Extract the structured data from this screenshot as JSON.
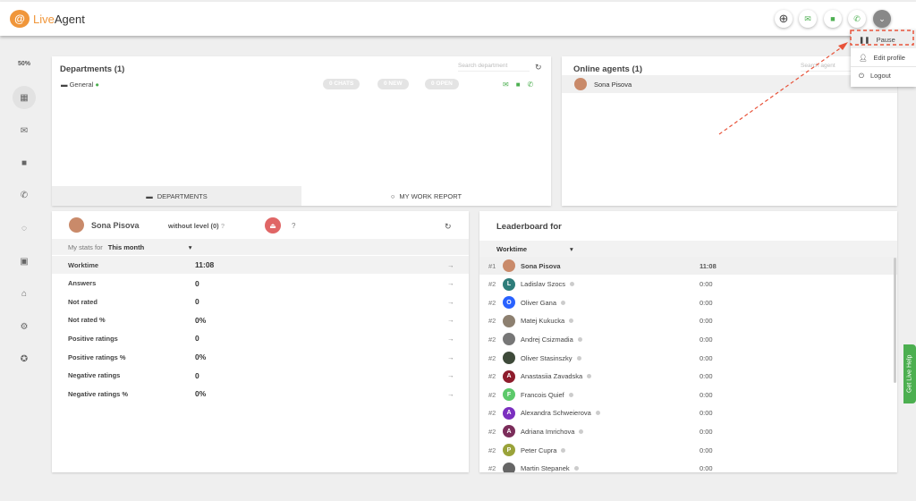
{
  "app": {
    "logo": "LiveAgent",
    "logo_live": "Live",
    "logo_agent": "Agent"
  },
  "header": {
    "buttons": [
      "add-icon",
      "email-icon",
      "chat-icon",
      "phone-icon",
      "chevron-down-icon"
    ]
  },
  "sidebar": {
    "zoom": "50%",
    "items": [
      "dashboard-icon",
      "email-icon",
      "chat-icon",
      "phone-icon",
      "contacts-icon",
      "customers-icon",
      "reports-icon",
      "settings-icon",
      "plugins-icon"
    ]
  },
  "user_menu": {
    "items": [
      {
        "label": "Pause",
        "icon": "pause-icon"
      },
      {
        "label": "Edit profile",
        "icon": "person-icon"
      },
      {
        "label": "Logout",
        "icon": "power-icon"
      }
    ]
  },
  "departments": {
    "title": "Departments (1)",
    "search_placeholder": "Search department",
    "items": [
      {
        "name": "General",
        "chats": "0 CHATS",
        "new": "0 NEW",
        "open": "0 OPEN"
      }
    ],
    "tabs": [
      "DEPARTMENTS",
      "MY WORK REPORT"
    ]
  },
  "online_agents": {
    "title": "Online agents (1)",
    "search_placeholder": "Search agent",
    "agents": [
      "Sona Pisova"
    ]
  },
  "stats": {
    "name": "Sona Pisova",
    "level": "without level (0)",
    "help": "?",
    "help2": "?",
    "period_label": "My stats for",
    "period": "This month",
    "rows": [
      {
        "label": "Worktime",
        "value": "11:08"
      },
      {
        "label": "Answers",
        "value": "0"
      },
      {
        "label": "Not rated",
        "value": "0"
      },
      {
        "label": "Not rated %",
        "value": "0%"
      },
      {
        "label": "Positive ratings",
        "value": "0"
      },
      {
        "label": "Positive ratings %",
        "value": "0%"
      },
      {
        "label": "Negative ratings",
        "value": "0"
      },
      {
        "label": "Negative ratings %",
        "value": "0%"
      }
    ]
  },
  "leaderboard": {
    "title": "Leaderboard for",
    "metric": "Worktime",
    "rows": [
      {
        "rank": "#1",
        "name": "Sona Pisova",
        "value": "11:08",
        "initial": "",
        "color": "#c98a6a"
      },
      {
        "rank": "#2",
        "name": "Ladislav Szocs",
        "value": "0:00",
        "initial": "L",
        "color": "#2e7d7a"
      },
      {
        "rank": "#2",
        "name": "Oliver Gana",
        "value": "0:00",
        "initial": "O",
        "color": "#2962ff"
      },
      {
        "rank": "#2",
        "name": "Matej Kukucka",
        "value": "0:00",
        "initial": "",
        "color": "#8d8070"
      },
      {
        "rank": "#2",
        "name": "Andrej Csizmadia",
        "value": "0:00",
        "initial": "",
        "color": "#777"
      },
      {
        "rank": "#2",
        "name": "Oliver Stasinszky",
        "value": "0:00",
        "initial": "",
        "color": "#3e4a3a"
      },
      {
        "rank": "#2",
        "name": "Anastasiia Zavadska",
        "value": "0:00",
        "initial": "A",
        "color": "#8e1c2c"
      },
      {
        "rank": "#2",
        "name": "Francois Quief",
        "value": "0:00",
        "initial": "F",
        "color": "#5cc96a"
      },
      {
        "rank": "#2",
        "name": "Alexandra Schweierova",
        "value": "0:00",
        "initial": "A",
        "color": "#7b2fbf"
      },
      {
        "rank": "#2",
        "name": "Adriana Imrichova",
        "value": "0:00",
        "initial": "A",
        "color": "#7b2d5a"
      },
      {
        "rank": "#2",
        "name": "Peter Cupra",
        "value": "0:00",
        "initial": "P",
        "color": "#9aa33a"
      },
      {
        "rank": "#2",
        "name": "Martin Stepanek",
        "value": "0:00",
        "initial": "",
        "color": "#666"
      }
    ]
  },
  "live_help": "Get Live Help",
  "colors": {
    "accent": "#f0963a",
    "green": "#4caf50",
    "annotation": "#e8533a"
  }
}
